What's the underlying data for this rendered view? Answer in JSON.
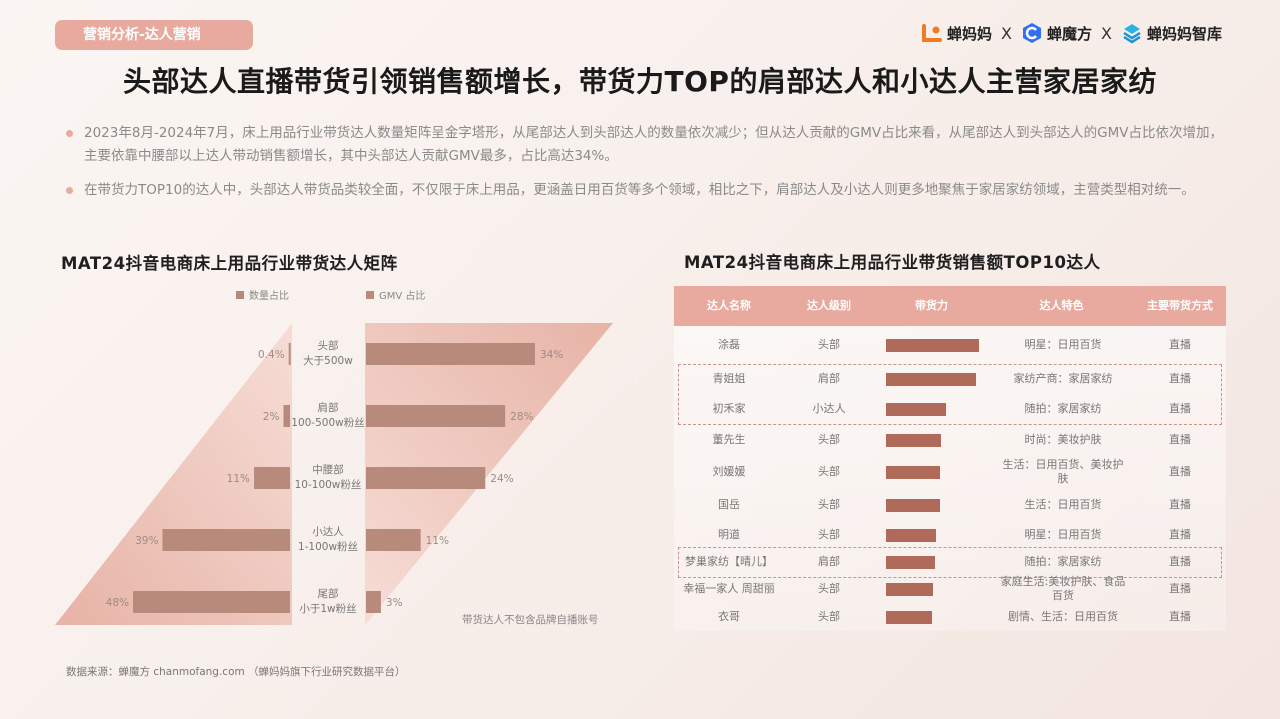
{
  "header": {
    "section_tag": "营销分析-达人营销",
    "brands": [
      "蝉妈妈",
      "蝉魔方",
      "蝉妈妈智库"
    ],
    "separator": "X",
    "title": "头部达人直播带货引领销售额增长，带货力TOP的肩部达人和小达人主营家居家纺"
  },
  "bullets": [
    "2023年8月-2024年7月，床上用品行业带货达人数量矩阵呈金字塔形，从尾部达人到头部达人的数量依次减少；但从达人贡献的GMV占比来看，从尾部达人到头部达人的GMV占比依次增加，主要依靠中腰部以上达人带动销售额增长，其中头部达人贡献GMV最多，占比高达34%。",
    "在带货力TOP10的达人中，头部达人带货品类较全面，不仅限于床上用品，更涵盖日用百货等多个领域，相比之下，肩部达人及小达人则更多地聚焦于家居家纺领域，主营类型相对统一。"
  ],
  "chart_data": [
    {
      "type": "bar",
      "title": "MAT24抖音电商床上用品行业带货达人矩阵",
      "categories": [
        "头部 大于500w",
        "肩部 100-500w粉丝",
        "中腰部 10-100w粉丝",
        "小达人 1-100w粉丝",
        "尾部 小于1w粉丝"
      ],
      "category_lines": [
        [
          "头部",
          "大于500w"
        ],
        [
          "肩部",
          "100-500w粉丝"
        ],
        [
          "中腰部",
          "10-100w粉丝"
        ],
        [
          "小达人",
          "1-100w粉丝"
        ],
        [
          "尾部",
          "小于1w粉丝"
        ]
      ],
      "series": [
        {
          "name": "数量占比",
          "values": [
            0.4,
            2,
            11,
            39,
            48
          ],
          "labels": [
            "0.4%",
            "2%",
            "11%",
            "39%",
            "48%"
          ]
        },
        {
          "name": "GMV 占比",
          "values": [
            34,
            28,
            24,
            11,
            3
          ],
          "labels": [
            "34%",
            "28%",
            "24%",
            "11%",
            "3%"
          ]
        }
      ],
      "note": "带货达人不包含品牌自播账号",
      "color": "#b88a7c"
    },
    {
      "type": "table",
      "title": "MAT24抖音电商床上用品行业带货销售额TOP10达人",
      "columns": [
        "达人名称",
        "达人级别",
        "带货力",
        "达人特色",
        "主要带货方式"
      ],
      "rows": [
        {
          "name": "涂磊",
          "level": "头部",
          "power": 1.0,
          "feature": "明星：日用百货",
          "mode": "直播"
        },
        {
          "name": "青姐姐",
          "level": "肩部",
          "power": 0.97,
          "feature": "家纺产商：家居家纺",
          "mode": "直播"
        },
        {
          "name": "初禾家",
          "level": "小达人",
          "power": 0.64,
          "feature": "随拍：家居家纺",
          "mode": "直播"
        },
        {
          "name": "董先生",
          "level": "头部",
          "power": 0.59,
          "feature": "时尚：美妆护肤",
          "mode": "直播"
        },
        {
          "name": "刘媛媛",
          "level": "头部",
          "power": 0.58,
          "feature": "生活：日用百货、美妆护肤",
          "mode": "直播"
        },
        {
          "name": "国岳",
          "level": "头部",
          "power": 0.58,
          "feature": "生活：日用百货",
          "mode": "直播"
        },
        {
          "name": "明道",
          "level": "头部",
          "power": 0.54,
          "feature": "明星：日用百货",
          "mode": "直播"
        },
        {
          "name": "梦巢家纺【晴儿】",
          "level": "肩部",
          "power": 0.53,
          "feature": "随拍：家居家纺",
          "mode": "直播"
        },
        {
          "name": "幸福一家人 周甜丽",
          "level": "头部",
          "power": 0.5,
          "feature": "家庭生活:美妆护肤、食品百货",
          "mode": "直播"
        },
        {
          "name": "衣哥",
          "level": "头部",
          "power": 0.49,
          "feature": "剧情、生活：日用百货",
          "mode": "直播"
        }
      ],
      "highlight_color": "#c9958a",
      "header_color": "#e8aa9e",
      "bar_color": "#b06a5a"
    }
  ],
  "footer": {
    "source": "数据来源：蝉魔方 chanmofang.com （蝉妈妈旗下行业研究数据平台）"
  }
}
